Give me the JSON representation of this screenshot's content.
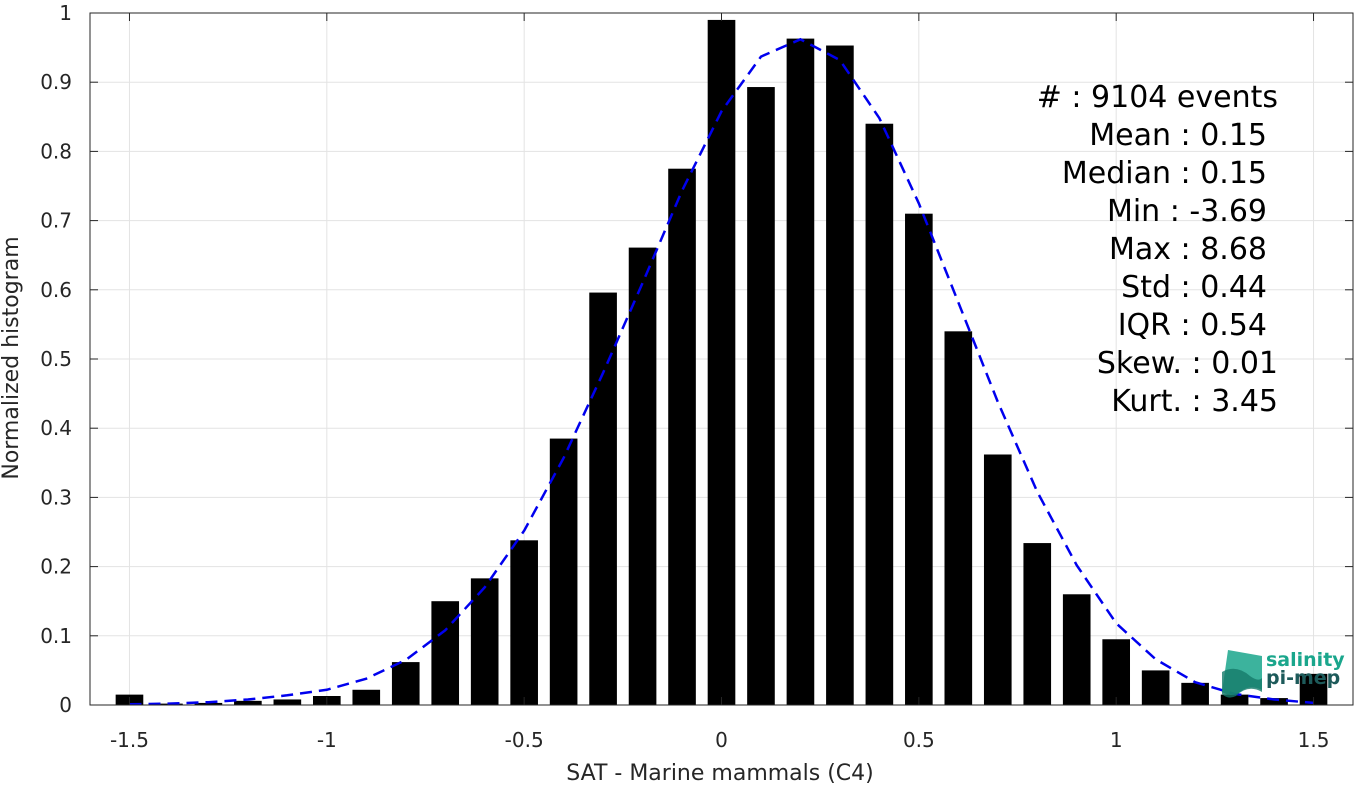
{
  "chart_data": {
    "type": "bar",
    "xlabel": "SAT - Marine mammals (C4)",
    "ylabel": "Normalized histogram",
    "xlim": [
      -1.6,
      1.6
    ],
    "ylim": [
      0,
      1
    ],
    "xticks": [
      "-1.5",
      "-1",
      "-0.5",
      "0",
      "0.5",
      "1",
      "1.5"
    ],
    "xtick_values": [
      -1.5,
      -1,
      -0.5,
      0,
      0.5,
      1,
      1.5
    ],
    "yticks": [
      "0",
      "0.1",
      "0.2",
      "0.3",
      "0.4",
      "0.5",
      "0.6",
      "0.7",
      "0.8",
      "0.9",
      "1"
    ],
    "ytick_values": [
      0,
      0.1,
      0.2,
      0.3,
      0.4,
      0.5,
      0.6,
      0.7,
      0.8,
      0.9,
      1
    ],
    "grid": true,
    "bar_color": "#000000",
    "bars": {
      "x": [
        -1.5,
        -1.4,
        -1.3,
        -1.2,
        -1.1,
        -1.0,
        -0.9,
        -0.8,
        -0.7,
        -0.6,
        -0.5,
        -0.4,
        -0.3,
        -0.2,
        -0.1,
        0.0,
        0.1,
        0.2,
        0.3,
        0.4,
        0.5,
        0.6,
        0.7,
        0.8,
        0.9,
        1.0,
        1.1,
        1.2,
        1.3,
        1.4,
        1.5
      ],
      "values": [
        0.015,
        0.002,
        0.003,
        0.006,
        0.008,
        0.013,
        0.022,
        0.062,
        0.15,
        0.183,
        0.238,
        0.385,
        0.596,
        0.661,
        0.775,
        0.99,
        0.893,
        0.963,
        0.953,
        0.84,
        0.71,
        0.54,
        0.362,
        0.234,
        0.16,
        0.095,
        0.05,
        0.032,
        0.015,
        0.01,
        0.045
      ]
    },
    "fit_curve": {
      "style": "dashed",
      "color": "#0000ee",
      "x": [
        -1.5,
        -1.4,
        -1.3,
        -1.2,
        -1.1,
        -1.0,
        -0.9,
        -0.8,
        -0.7,
        -0.6,
        -0.5,
        -0.4,
        -0.3,
        -0.2,
        -0.1,
        0.0,
        0.1,
        0.2,
        0.3,
        0.4,
        0.5,
        0.6,
        0.7,
        0.8,
        0.9,
        1.0,
        1.1,
        1.2,
        1.3,
        1.4,
        1.5
      ],
      "y": [
        0.001,
        0.002,
        0.004,
        0.008,
        0.014,
        0.022,
        0.038,
        0.065,
        0.108,
        0.17,
        0.252,
        0.357,
        0.48,
        0.61,
        0.743,
        0.858,
        0.937,
        0.962,
        0.932,
        0.848,
        0.725,
        0.582,
        0.438,
        0.308,
        0.202,
        0.118,
        0.066,
        0.033,
        0.016,
        0.008,
        0.003
      ]
    }
  },
  "stats": [
    "#  : 9104 events",
    "Mean : 0.15",
    "Median : 0.15",
    "Min : -3.69",
    "Max : 8.68",
    "Std : 0.44",
    "IQR : 0.54",
    "Skew. : 0.01",
    "Kurt. : 3.45"
  ],
  "logo": {
    "line1": "salinity",
    "line2": "pi-mep",
    "color1": "#1aa68c",
    "color2": "#1d5a5a"
  }
}
